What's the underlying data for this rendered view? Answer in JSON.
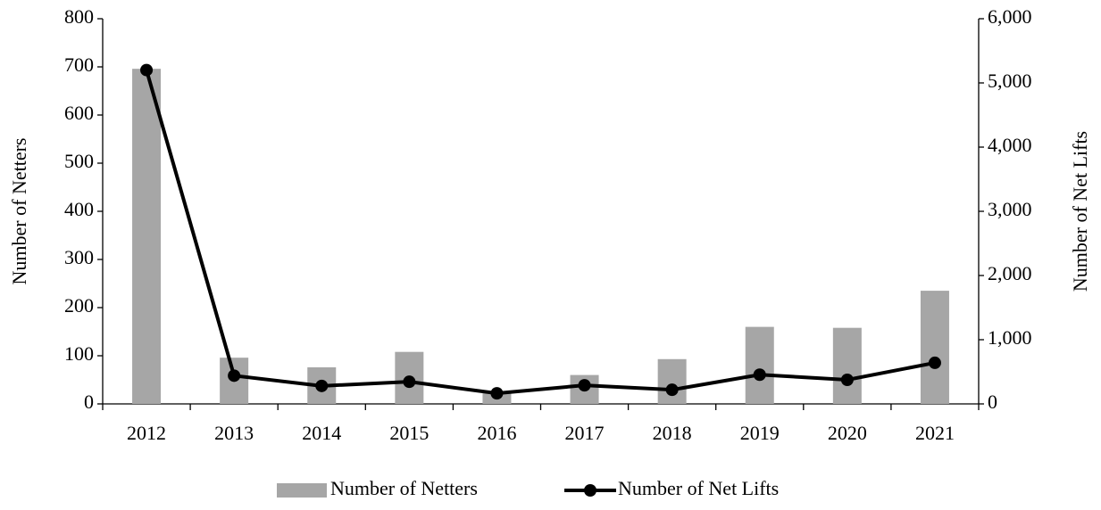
{
  "chart_data": {
    "type": "bar",
    "categories": [
      "2012",
      "2013",
      "2014",
      "2015",
      "2016",
      "2017",
      "2018",
      "2019",
      "2020",
      "2021"
    ],
    "y_label": "Number of Netters",
    "y2_label": "Number of Net Lifts",
    "series": [
      {
        "name": "Number of Netters",
        "type": "bar",
        "color": "#a6a6a6",
        "values": [
          696,
          96,
          76,
          108,
          22,
          60,
          93,
          160,
          158,
          235
        ]
      },
      {
        "name": "Number of Net Lifts",
        "type": "line",
        "axis": "y2",
        "color": "#000000",
        "values": [
          5200,
          440,
          280,
          345,
          165,
          290,
          220,
          455,
          375,
          640
        ]
      }
    ],
    "ylim": [
      0,
      800
    ],
    "yticks": [
      0,
      100,
      200,
      300,
      400,
      500,
      600,
      700,
      800
    ],
    "y2lim": [
      0,
      6000
    ],
    "y2ticks": [
      0,
      {
        "value": 1000,
        "label": "1,000"
      },
      {
        "value": 2000,
        "label": "2,000"
      },
      {
        "value": 3000,
        "label": "3,000"
      },
      {
        "value": 4000,
        "label": "4,000"
      },
      {
        "value": 5000,
        "label": "5,000"
      },
      {
        "value": 6000,
        "label": "6,000"
      }
    ],
    "grid": false,
    "legend": "bottom"
  }
}
